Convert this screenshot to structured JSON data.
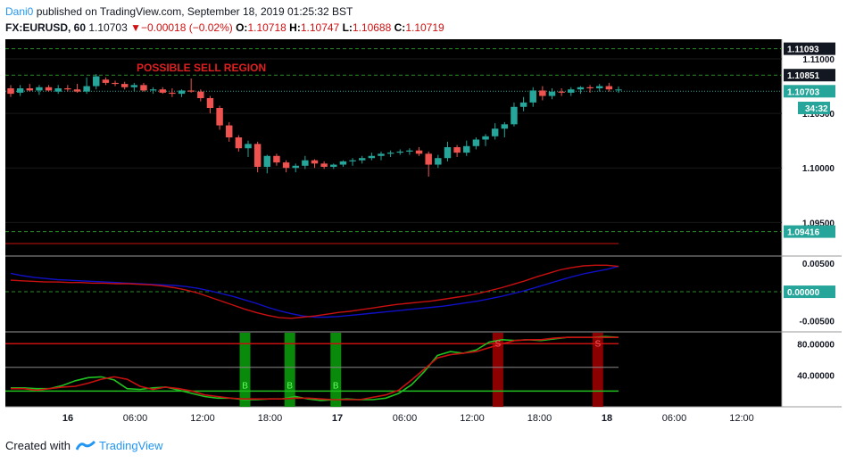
{
  "header": {
    "author": "Dani0",
    "published_text": " published on TradingView.com, September 18, 2019 01:25:32 BST",
    "symbol": "FX:EURUSD, 60",
    "last": "1.10703",
    "arrow": "▼",
    "change": "−0.00018 (−0.02%)",
    "o_label": "O:",
    "o_value": "1.10718",
    "h_label": "H:",
    "h_value": "1.10747",
    "l_label": "L:",
    "l_value": "1.10688",
    "c_label": "C:",
    "c_value": "1.10719"
  },
  "footer": {
    "created_with": "Created with",
    "brand": "TradingView"
  },
  "colors": {
    "up": "#26a69a",
    "down": "#ef5350",
    "background": "#000000",
    "grid": "#1a1a1a",
    "signal_red": "#8b0000",
    "signal_green": "#0a8a0a",
    "macd": "#1010c8",
    "signal": "#c81010",
    "stoch_k": "#20c020",
    "stoch_d": "#c81010"
  },
  "chart_data": [
    {
      "type": "candlestick",
      "title": "",
      "annotation": "POSSIBLE SELL REGION",
      "x_ticks": [
        "16",
        "06:00",
        "12:00",
        "18:00",
        "17",
        "06:00",
        "12:00",
        "18:00",
        "18",
        "06:00",
        "12:00"
      ],
      "y_ticks": [
        "1.11000",
        "1.10500",
        "1.10000",
        "1.09500"
      ],
      "price_tags": [
        {
          "label": "1.11093",
          "value": 1.11093,
          "kind": "line"
        },
        {
          "label": "1.10851",
          "value": 1.10851,
          "kind": "line"
        },
        {
          "label": "1.10703",
          "value": 1.10703,
          "kind": "last"
        },
        {
          "label": "34:32",
          "value": 1.1055,
          "kind": "timer"
        },
        {
          "label": "1.09416",
          "value": 1.09416,
          "kind": "line"
        }
      ],
      "ylim": [
        1.092,
        1.1118
      ],
      "ohlc": [
        [
          1.1073,
          1.1076,
          1.1065,
          1.1068
        ],
        [
          1.1069,
          1.1076,
          1.1066,
          1.1073
        ],
        [
          1.1073,
          1.1077,
          1.107,
          1.1071
        ],
        [
          1.1071,
          1.1076,
          1.1067,
          1.1074
        ],
        [
          1.1074,
          1.1076,
          1.107,
          1.1071
        ],
        [
          1.107,
          1.1076,
          1.1068,
          1.1073
        ],
        [
          1.1073,
          1.1076,
          1.107,
          1.1072
        ],
        [
          1.1072,
          1.1077,
          1.1069,
          1.107
        ],
        [
          1.107,
          1.1083,
          1.1068,
          1.1075
        ],
        [
          1.1075,
          1.1086,
          1.1072,
          1.1084
        ],
        [
          1.1081,
          1.1083,
          1.1076,
          1.1078
        ],
        [
          1.1078,
          1.108,
          1.1075,
          1.1077
        ],
        [
          1.1077,
          1.1079,
          1.1072,
          1.1074
        ],
        [
          1.1074,
          1.1078,
          1.107,
          1.1076
        ],
        [
          1.1076,
          1.1078,
          1.107,
          1.1071
        ],
        [
          1.1071,
          1.1074,
          1.1068,
          1.1072
        ],
        [
          1.1072,
          1.1074,
          1.1068,
          1.1069
        ],
        [
          1.1069,
          1.1073,
          1.1065,
          1.1068
        ],
        [
          1.1068,
          1.1072,
          1.1065,
          1.1071
        ],
        [
          1.1071,
          1.1082,
          1.1069,
          1.107
        ],
        [
          1.107,
          1.1072,
          1.1061,
          1.1064
        ],
        [
          1.1064,
          1.1066,
          1.105,
          1.1055
        ],
        [
          1.1055,
          1.1057,
          1.1035,
          1.1039
        ],
        [
          1.1039,
          1.1042,
          1.1024,
          1.1028
        ],
        [
          1.1028,
          1.103,
          1.1015,
          1.1018
        ],
        [
          1.1018,
          1.1025,
          1.101,
          1.1022
        ],
        [
          1.1022,
          1.1024,
          1.0996,
          1.1001
        ],
        [
          1.1001,
          1.1012,
          1.0995,
          1.1011
        ],
        [
          1.1011,
          1.1013,
          1.1002,
          1.1005
        ],
        [
          1.1005,
          1.1007,
          1.0996,
          1.1
        ],
        [
          1.1,
          1.1004,
          1.0996,
          1.1002
        ],
        [
          1.1002,
          1.1011,
          1.0999,
          1.1007
        ],
        [
          1.1007,
          1.1008,
          1.1,
          1.1004
        ],
        [
          1.1004,
          1.1006,
          1.0999,
          1.1001
        ],
        [
          1.1001,
          1.1004,
          1.0999,
          1.1003
        ],
        [
          1.1003,
          1.1007,
          1.1001,
          1.1006
        ],
        [
          1.1006,
          1.1009,
          1.1002,
          1.1007
        ],
        [
          1.1007,
          1.1011,
          1.1004,
          1.1009
        ],
        [
          1.1009,
          1.1014,
          1.1007,
          1.1011
        ],
        [
          1.1011,
          1.1015,
          1.1007,
          1.1013
        ],
        [
          1.1013,
          1.1016,
          1.101,
          1.1014
        ],
        [
          1.1014,
          1.1017,
          1.1012,
          1.1015
        ],
        [
          1.1015,
          1.1018,
          1.1012,
          1.1016
        ],
        [
          1.1016,
          1.1019,
          1.1011,
          1.1013
        ],
        [
          1.1013,
          1.1015,
          1.0992,
          1.1003
        ],
        [
          1.1003,
          1.1012,
          1.1,
          1.1009
        ],
        [
          1.1009,
          1.1024,
          1.1006,
          1.1019
        ],
        [
          1.1019,
          1.1021,
          1.101,
          1.1014
        ],
        [
          1.1014,
          1.1025,
          1.1011,
          1.102
        ],
        [
          1.102,
          1.1028,
          1.1017,
          1.1026
        ],
        [
          1.1026,
          1.1031,
          1.102,
          1.1029
        ],
        [
          1.1029,
          1.1041,
          1.1026,
          1.1036
        ],
        [
          1.1036,
          1.1042,
          1.1028,
          1.104
        ],
        [
          1.104,
          1.106,
          1.1038,
          1.1056
        ],
        [
          1.1056,
          1.1065,
          1.1052,
          1.106
        ],
        [
          1.106,
          1.1074,
          1.1056,
          1.1071
        ],
        [
          1.1071,
          1.1075,
          1.1062,
          1.1066
        ],
        [
          1.1066,
          1.1073,
          1.1063,
          1.107
        ],
        [
          1.107,
          1.1073,
          1.1066,
          1.1069
        ],
        [
          1.1069,
          1.1074,
          1.1066,
          1.1072
        ],
        [
          1.1072,
          1.1075,
          1.1068,
          1.1074
        ],
        [
          1.1074,
          1.1076,
          1.1069,
          1.1073
        ],
        [
          1.1073,
          1.1077,
          1.107,
          1.1075
        ],
        [
          1.1075,
          1.1078,
          1.107,
          1.1072
        ],
        [
          1.10718,
          1.10747,
          1.10688,
          1.10719
        ]
      ]
    },
    {
      "type": "line",
      "title": "",
      "y_ticks": [
        "0.00500",
        "0.00000",
        "-0.00500"
      ],
      "value_tag": "0.00000",
      "ylim": [
        -0.0068,
        0.0062
      ],
      "series": [
        {
          "values": [
            0.0032,
            0.0028,
            0.0025,
            0.0023,
            0.0021,
            0.002,
            0.0019,
            0.0018,
            0.0017,
            0.0016,
            0.0015,
            0.0014,
            0.0013,
            0.0012,
            0.0011,
            0.0009,
            0.0006,
            0.0002,
            -0.0003,
            -0.0008,
            -0.0014,
            -0.002,
            -0.0027,
            -0.0033,
            -0.0038,
            -0.0042,
            -0.0044,
            -0.0044,
            -0.0043,
            -0.0041,
            -0.0039,
            -0.0037,
            -0.0035,
            -0.0033,
            -0.0031,
            -0.0029,
            -0.0027,
            -0.0025,
            -0.0022,
            -0.0019,
            -0.0016,
            -0.0012,
            -0.0008,
            -0.0003,
            0.0002,
            0.0008,
            0.0014,
            0.002,
            0.0026,
            0.0031,
            0.0035,
            0.0039,
            0.0044
          ]
        },
        {
          "values": [
            0.002,
            0.0019,
            0.0018,
            0.0017,
            0.0017,
            0.0016,
            0.0016,
            0.0015,
            0.0015,
            0.0014,
            0.0014,
            0.0013,
            0.0012,
            0.001,
            0.0007,
            0.0003,
            -0.0002,
            -0.0009,
            -0.0016,
            -0.0023,
            -0.003,
            -0.0036,
            -0.0041,
            -0.0045,
            -0.0046,
            -0.0044,
            -0.0042,
            -0.0039,
            -0.0036,
            -0.0034,
            -0.0031,
            -0.0028,
            -0.0025,
            -0.0022,
            -0.002,
            -0.0018,
            -0.0016,
            -0.0013,
            -0.001,
            -0.0007,
            -0.0003,
            0.0002,
            0.0007,
            0.0013,
            0.0019,
            0.0026,
            0.0032,
            0.0038,
            0.0042,
            0.0045,
            0.0046,
            0.0046,
            0.0044
          ]
        }
      ]
    },
    {
      "type": "line",
      "title": "",
      "y_ticks": [
        "80.00000",
        "40.00000"
      ],
      "ylim": [
        0,
        95
      ],
      "levels": [
        80,
        50,
        20
      ],
      "signals": [
        {
          "label": "B",
          "x": 0.3855
        },
        {
          "label": "B",
          "x": 0.4592
        },
        {
          "label": "B",
          "x": 0.5349
        },
        {
          "label": "S",
          "x": 0.8016
        },
        {
          "label": "S",
          "x": 0.9659
        }
      ],
      "series": [
        {
          "values": [
            24,
            24,
            23,
            23,
            27,
            33,
            37,
            38,
            34,
            23,
            22,
            24,
            25,
            21,
            17,
            13,
            11,
            11,
            9,
            9,
            10,
            10,
            13,
            10,
            8,
            9,
            10,
            9,
            9,
            11,
            17,
            28,
            45,
            65,
            70,
            68,
            72,
            82,
            85,
            84,
            85,
            84,
            86,
            88,
            88,
            88,
            89,
            88
          ]
        },
        {
          "values": [
            23,
            23,
            21,
            23,
            25,
            26,
            30,
            35,
            38,
            35,
            26,
            22,
            25,
            23,
            20,
            15,
            13,
            11,
            10,
            10,
            10,
            10,
            11,
            11,
            10,
            9,
            9,
            9,
            12,
            15,
            21,
            34,
            48,
            62,
            66,
            68,
            70,
            75,
            80,
            84,
            85,
            85,
            87,
            88,
            88,
            88,
            88,
            88
          ]
        }
      ]
    }
  ]
}
